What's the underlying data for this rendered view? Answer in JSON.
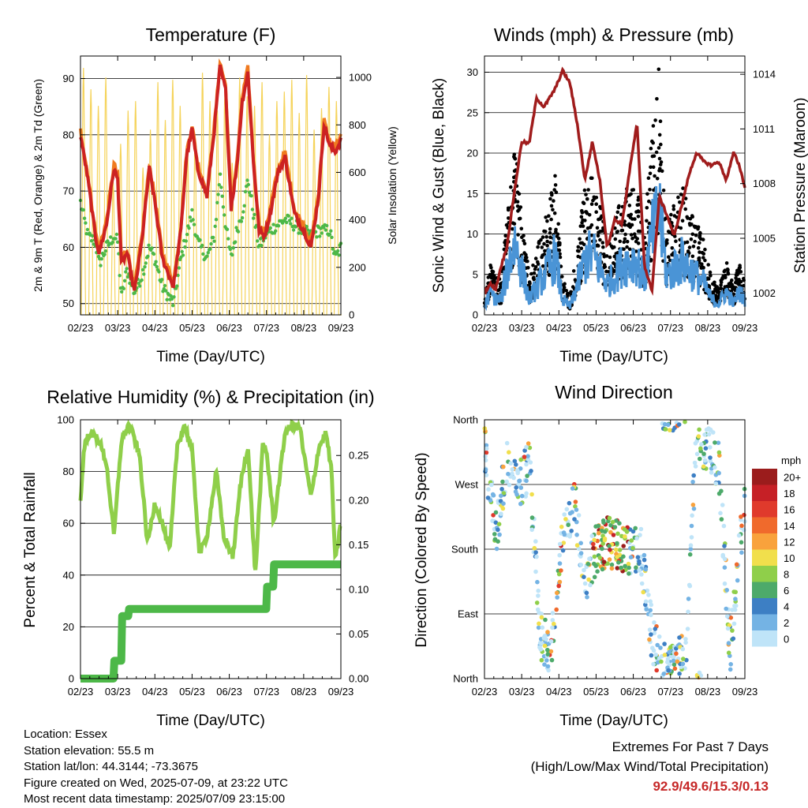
{
  "xticks": [
    "02/23",
    "03/23",
    "04/23",
    "05/23",
    "06/23",
    "07/23",
    "08/23",
    "09/23"
  ],
  "colors": {
    "red": "#cc2222",
    "orange": "#f07a20",
    "green": "#4db848",
    "yellow": "#f5d35a",
    "maroon": "#a01c1c",
    "blue": "#4a94d6",
    "black": "#000000",
    "rh": "#8fcf4a",
    "precip": "#4db848"
  },
  "temperature": {
    "title": "Temperature (F)",
    "ylabel_left": "2m & 9m T (Red, Orange) & 2m Td (Green)",
    "ylabel_right": "Solar Insolation (Yellow)",
    "xlabel": "Time (Day/UTC)",
    "left_ticks": [
      "50",
      "60",
      "70",
      "80",
      "90"
    ],
    "right_ticks": [
      "0",
      "200",
      "400",
      "600",
      "800",
      "1000"
    ]
  },
  "winds": {
    "title": "Winds (mph) & Pressure (mb)",
    "ylabel_left": "Sonic Wind & Gust (Blue, Black)",
    "ylabel_right": "Station Pressure (Maroon)",
    "xlabel": "Time (Day/UTC)",
    "left_ticks": [
      "0",
      "5",
      "10",
      "15",
      "20",
      "25",
      "30"
    ],
    "right_ticks": [
      "1002",
      "1005",
      "1008",
      "1011",
      "1014"
    ]
  },
  "humidity": {
    "title": "Relative Humidity (%) & Precipitation (in)",
    "ylabel_left": "Percent & Total Rainfall",
    "xlabel": "Time (Day/UTC)",
    "left_ticks": [
      "0",
      "20",
      "40",
      "60",
      "80",
      "100"
    ],
    "right_ticks": [
      "0.00",
      "0.05",
      "0.10",
      "0.15",
      "0.20",
      "0.25"
    ]
  },
  "direction": {
    "title": "Wind Direction",
    "ylabel_left": "Direction (Colored By Speed)",
    "xlabel": "Time (Day/UTC)",
    "left_ticks": [
      "North",
      "East",
      "South",
      "West",
      "North"
    ],
    "colorbar_unit": "mph",
    "colorbar_labels": [
      "20+",
      "18",
      "16",
      "14",
      "12",
      "10",
      "8",
      "6",
      "4",
      "2",
      "0"
    ],
    "colorbar_colors": [
      "#9b1c1c",
      "#c62026",
      "#e03a2c",
      "#f06a2c",
      "#f9a23c",
      "#f1df4c",
      "#8fcf4a",
      "#4daa6a",
      "#3d7fc4",
      "#74b3e4",
      "#bfe4f8"
    ]
  },
  "chart_data": [
    {
      "type": "line",
      "title": "Temperature (F)",
      "xlabel": "Time (Day/UTC)",
      "ylabel": "2m & 9m T (Red, Orange) & 2m Td (Green)",
      "ylabel_right": "Solar Insolation (Yellow)",
      "ylim": [
        48,
        94
      ],
      "ylim_right": [
        0,
        1090
      ],
      "x_day": [
        0,
        0.2,
        0.4,
        0.5,
        0.7,
        0.9,
        1.0,
        1.1,
        1.25,
        1.45,
        1.65,
        1.85,
        2.0,
        2.2,
        2.5,
        2.7,
        2.85,
        3.0,
        3.15,
        3.4,
        3.6,
        3.75,
        3.9,
        4.05,
        4.2,
        4.35,
        4.5,
        4.65,
        4.8,
        4.95,
        5.1,
        5.3,
        5.5,
        5.75,
        6.0,
        6.2,
        6.4,
        6.55,
        6.7,
        6.85,
        7.0
      ],
      "series": [
        {
          "name": "2m T (Red)",
          "values": [
            80,
            72,
            62,
            59,
            64,
            74,
            72,
            57,
            59,
            52,
            61,
            74,
            68,
            58,
            53,
            63,
            76,
            81,
            74,
            69,
            81,
            92,
            88,
            67,
            74,
            86,
            91,
            75,
            63,
            62,
            66,
            73,
            76,
            66,
            63,
            60,
            69,
            82,
            78,
            77,
            79
          ]
        },
        {
          "name": "2m Td (Green)",
          "values": [
            68,
            62,
            61,
            57,
            60,
            62,
            61,
            51,
            56,
            52,
            55,
            60,
            58,
            53,
            50,
            58,
            62,
            66,
            61,
            58,
            62,
            73,
            64,
            58,
            63,
            66,
            72,
            66,
            60,
            62,
            63,
            64,
            65,
            64,
            63,
            62,
            63,
            63,
            63,
            58,
            60
          ]
        }
      ]
    },
    {
      "type": "line",
      "title": "Winds (mph) & Pressure (mb)",
      "xlabel": "Time (Day/UTC)",
      "ylabel": "Sonic Wind & Gust (Blue, Black)",
      "ylabel_right": "Station Pressure (Maroon)",
      "ylim": [
        0,
        32
      ],
      "ylim_right": [
        1000.8,
        1015
      ],
      "x_day": [
        0,
        0.15,
        0.3,
        0.45,
        0.6,
        0.8,
        1.0,
        1.2,
        1.4,
        1.6,
        1.9,
        2.1,
        2.3,
        2.5,
        2.7,
        2.9,
        3.1,
        3.3,
        3.5,
        3.7,
        3.9,
        4.1,
        4.3,
        4.5,
        4.7,
        4.9,
        5.1,
        5.3,
        5.5,
        5.7,
        5.9,
        6.1,
        6.3,
        6.5,
        6.7,
        6.85,
        7.0
      ],
      "series": [
        {
          "name": "Gust (Black) approx",
          "values": [
            2,
            6,
            4,
            4,
            11,
            19,
            12,
            4,
            7,
            10,
            15,
            4,
            2,
            8,
            14,
            16,
            12,
            8,
            10,
            13,
            14,
            14,
            9,
            20,
            27,
            10,
            12,
            14,
            12,
            10,
            8,
            4,
            3,
            6,
            3,
            6,
            4
          ]
        },
        {
          "name": "Station Pressure (Maroon)",
          "values": [
            1002,
            1002.5,
            1002.2,
            1003.5,
            1004.5,
            1007.5,
            1010.3,
            1010.2,
            1012.7,
            1012.2,
            1013.2,
            1014.2,
            1013.5,
            1011.2,
            1008.2,
            1010.3,
            1008.2,
            1004.5,
            1006.0,
            1005.8,
            1008.7,
            1011.3,
            1003.5,
            1002.1,
            1007.3,
            1006.3,
            1005.1,
            1006.8,
            1008.5,
            1009.7,
            1009.2,
            1009.0,
            1009.2,
            1008.2,
            1009.7,
            1009.0,
            1007.8
          ]
        }
      ]
    },
    {
      "type": "line",
      "title": "Relative Humidity (%) & Precipitation (in)",
      "xlabel": "Time (Day/UTC)",
      "ylabel": "Percent & Total Rainfall",
      "ylim": [
        0,
        100
      ],
      "ylim_right": [
        0,
        0.29
      ],
      "x_day": [
        0,
        0.1,
        0.25,
        0.5,
        0.7,
        0.9,
        1.1,
        1.3,
        1.45,
        1.6,
        1.8,
        2.0,
        2.2,
        2.4,
        2.6,
        2.8,
        3.0,
        3.2,
        3.4,
        3.65,
        3.85,
        4.1,
        4.3,
        4.5,
        4.7,
        4.9,
        5.0,
        5.2,
        5.5,
        5.7,
        5.9,
        6.0,
        6.2,
        6.4,
        6.6,
        6.75,
        6.85,
        7.0
      ],
      "series": [
        {
          "name": "Relative Humidity",
          "values": [
            68,
            90,
            95,
            92,
            83,
            55,
            92,
            98,
            93,
            85,
            52,
            68,
            60,
            49,
            90,
            98,
            88,
            48,
            55,
            80,
            55,
            47,
            75,
            90,
            40,
            90,
            88,
            60,
            95,
            98,
            97,
            87,
            70,
            89,
            95,
            80,
            45,
            60
          ]
        },
        {
          "name": "Total Rainfall",
          "values": [
            0,
            0,
            0,
            0,
            0,
            0.02,
            0.07,
            0.078,
            0.078,
            0.078,
            0.078,
            0.078,
            0.078,
            0.078,
            0.078,
            0.078,
            0.078,
            0.078,
            0.078,
            0.078,
            0.078,
            0.078,
            0.078,
            0.078,
            0.078,
            0.078,
            0.103,
            0.128,
            0.128,
            0.128,
            0.128,
            0.128,
            0.128,
            0.128,
            0.128,
            0.128,
            0.128,
            0.128
          ]
        }
      ]
    },
    {
      "type": "scatter",
      "title": "Wind Direction",
      "xlabel": "Time (Day/UTC)",
      "ylabel": "Direction (Colored By Speed)",
      "y_categories": [
        "North",
        "East",
        "South",
        "West",
        "North"
      ],
      "colorbar_unit": "mph",
      "colorbar_levels": [
        "0",
        "2",
        "4",
        "6",
        "8",
        "10",
        "12",
        "14",
        "16",
        "18",
        "20+"
      ]
    }
  ],
  "footer": {
    "location": "Location: Essex",
    "elevation": "Station elevation: 55.5 m",
    "latlon": "Station lat/lon: 44.3144; -73.3675",
    "created": "Figure created on Wed, 2025-07-09, at 23:22 UTC",
    "recent": "Most recent data timestamp: 2025/07/09 23:15:00"
  },
  "extremes": {
    "title": "Extremes For Past 7 Days",
    "subtitle": "(High/Low/Max Wind/Total Precipitation)",
    "values": "92.9/49.6/15.3/0.13"
  }
}
